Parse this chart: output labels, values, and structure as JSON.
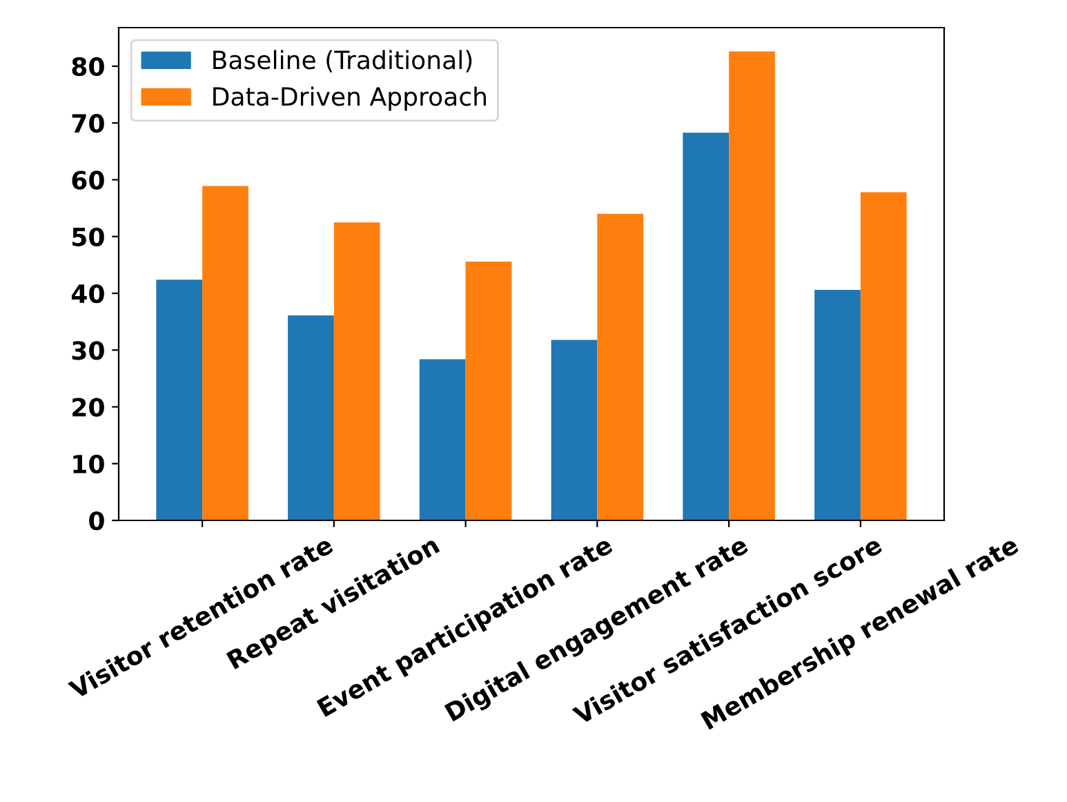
{
  "chart_data": {
    "type": "bar",
    "categories": [
      "Visitor retention rate",
      "Repeat visitation",
      "Event participation rate",
      "Digital engagement rate",
      "Visitor satisfaction score",
      "Membership renewal rate"
    ],
    "series": [
      {
        "name": "Baseline (Traditional)",
        "color": "#1f77b4",
        "values": [
          42.4,
          36.1,
          28.4,
          31.8,
          68.3,
          40.6
        ]
      },
      {
        "name": "Data-Driven Approach",
        "color": "#ff7f0e",
        "values": [
          58.9,
          52.5,
          45.6,
          54.0,
          82.6,
          57.8
        ]
      }
    ],
    "ylim": [
      0,
      86.8
    ],
    "yticks": [
      0,
      10,
      20,
      30,
      40,
      50,
      60,
      70,
      80
    ],
    "grid": false,
    "legend": "top left"
  }
}
